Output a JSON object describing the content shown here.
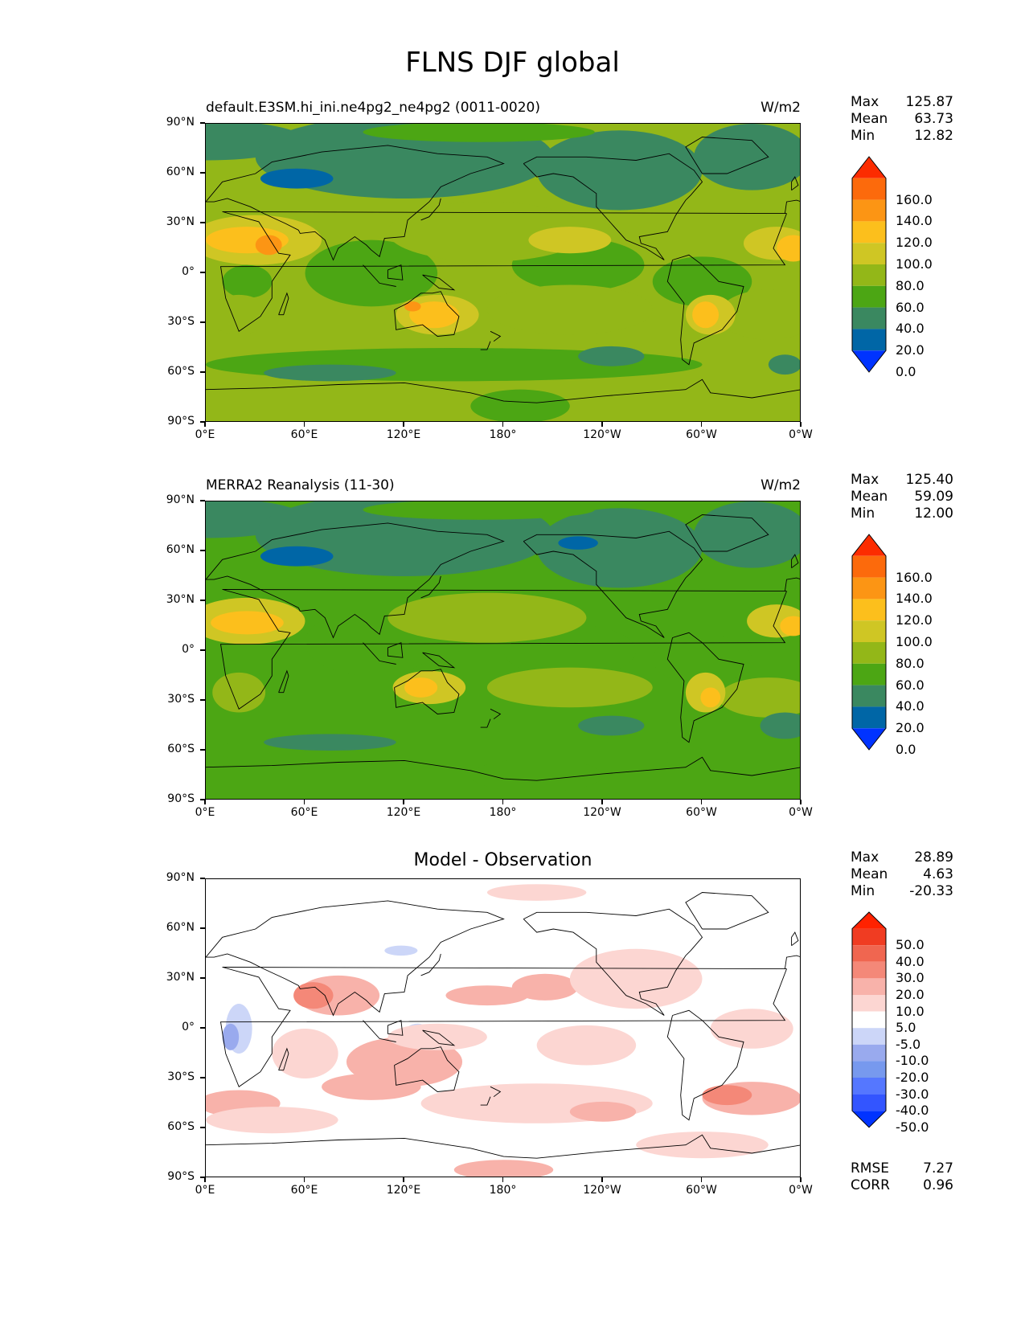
{
  "title": "FLNS DJF global",
  "lat_labels": [
    "90°N",
    "60°N",
    "30°N",
    "0°",
    "30°S",
    "60°S",
    "90°S"
  ],
  "lon_labels": [
    "0°E",
    "60°E",
    "120°E",
    "180°",
    "120°W",
    "60°W",
    "0°W"
  ],
  "panels": [
    {
      "left_title": "default.E3SM.hi_ini.ne4pg2_ne4pg2 (0011-0020)",
      "right_title": "W/m2",
      "center_title": "",
      "stats": {
        "max_label": "Max",
        "max": "125.87",
        "mean_label": "Mean",
        "mean": "63.73",
        "min_label": "Min",
        "min": "12.82"
      },
      "colorbar_labels": [
        "160.0",
        "140.0",
        "120.0",
        "100.0",
        "80.0",
        "60.0",
        "40.0",
        "20.0",
        "0.0"
      ]
    },
    {
      "left_title": "MERRA2 Reanalysis (11-30)",
      "right_title": "W/m2",
      "center_title": "",
      "stats": {
        "max_label": "Max",
        "max": "125.40",
        "mean_label": "Mean",
        "mean": "59.09",
        "min_label": "Min",
        "min": "12.00"
      },
      "colorbar_labels": [
        "160.0",
        "140.0",
        "120.0",
        "100.0",
        "80.0",
        "60.0",
        "40.0",
        "20.0",
        "0.0"
      ]
    },
    {
      "left_title": "",
      "right_title": "",
      "center_title": "Model - Observation",
      "stats": {
        "max_label": "Max",
        "max": "28.89",
        "mean_label": "Mean",
        "mean": "4.63",
        "min_label": "Min",
        "min": "-20.33"
      },
      "colorbar_labels": [
        "50.0",
        "40.0",
        "30.0",
        "20.0",
        "10.0",
        "5.0",
        "-5.0",
        "-10.0",
        "-20.0",
        "-30.0",
        "-40.0",
        "-50.0"
      ],
      "rmse_label": "RMSE",
      "rmse": "7.27",
      "corr_label": "CORR",
      "corr": "0.96"
    }
  ],
  "colors": {
    "field_bins": [
      "#0033ff",
      "#0066a6",
      "#3a8860",
      "#4ca614",
      "#93b718",
      "#cfc624",
      "#fcbf1c",
      "#fc9514",
      "#fc6a0c",
      "#fc2c00"
    ],
    "diff_bins": [
      "#0033ff",
      "#3355ff",
      "#5577ff",
      "#7799ee",
      "#99aaee",
      "#ccd6f8",
      "#ffffff",
      "#fcd6d2",
      "#f8b2aa",
      "#f48878",
      "#f06650",
      "#f03c22",
      "#ff2200"
    ]
  },
  "chart_data": [
    {
      "type": "heatmap",
      "title": "default.E3SM.hi_ini.ne4pg2_ne4pg2 (0011-0020)",
      "units": "W/m2",
      "xlabel": "",
      "ylabel": "",
      "xlim": [
        0,
        360
      ],
      "ylim": [
        -90,
        90
      ],
      "levels": [
        0,
        20,
        40,
        60,
        80,
        100,
        120,
        140,
        160
      ],
      "max": 125.87,
      "mean": 63.73,
      "min": 12.82,
      "fields": [
        {
          "lon": [
            60,
            75
          ],
          "lat": [
            -10,
            30
          ],
          "value": 130
        },
        {
          "lon": [
            0,
            55
          ],
          "lat": [
            5,
            30
          ],
          "value": 110
        },
        {
          "lon": [
            125,
            150
          ],
          "lat": [
            -35,
            -15
          ],
          "value": 115
        },
        {
          "lon": [
            295,
            310
          ],
          "lat": [
            -40,
            -15
          ],
          "value": 105
        },
        {
          "lon": [
            320,
            360
          ],
          "lat": [
            10,
            30
          ],
          "value": 105
        },
        {
          "lon": [
            35,
            75
          ],
          "lat": [
            50,
            63
          ],
          "value": 15
        }
      ]
    },
    {
      "type": "heatmap",
      "title": "MERRA2 Reanalysis (11-30)",
      "units": "W/m2",
      "xlabel": "",
      "ylabel": "",
      "xlim": [
        0,
        360
      ],
      "ylim": [
        -90,
        90
      ],
      "levels": [
        0,
        20,
        40,
        60,
        80,
        100,
        120,
        140,
        160
      ],
      "max": 125.4,
      "mean": 59.09,
      "min": 12.0,
      "fields": [
        {
          "lon": [
            0,
            55
          ],
          "lat": [
            5,
            30
          ],
          "value": 110
        },
        {
          "lon": [
            125,
            145
          ],
          "lat": [
            -35,
            -20
          ],
          "value": 105
        },
        {
          "lon": [
            320,
            360
          ],
          "lat": [
            10,
            30
          ],
          "value": 105
        },
        {
          "lon": [
            35,
            75
          ],
          "lat": [
            48,
            60
          ],
          "value": 15
        }
      ]
    },
    {
      "type": "heatmap",
      "title": "Model - Observation",
      "units": "W/m2",
      "xlabel": "",
      "ylabel": "",
      "xlim": [
        0,
        360
      ],
      "ylim": [
        -90,
        90
      ],
      "levels": [
        -50,
        -40,
        -30,
        -20,
        -10,
        -5,
        5,
        10,
        20,
        30,
        40,
        50
      ],
      "max": 28.89,
      "mean": 4.63,
      "min": -20.33,
      "rmse": 7.27,
      "corr": 0.96
    }
  ]
}
